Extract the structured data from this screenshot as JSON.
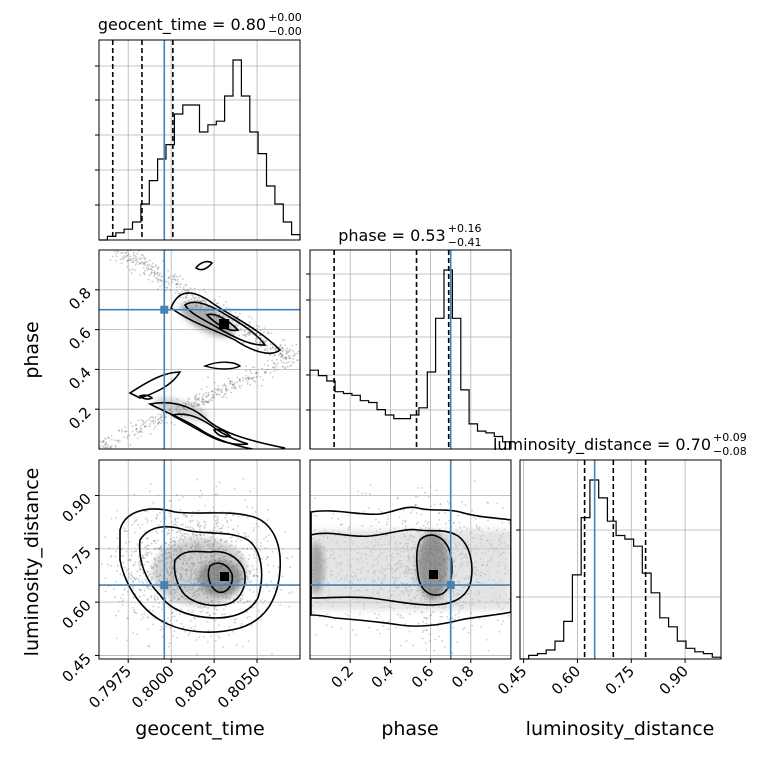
{
  "chart_data": {
    "type": "corner",
    "parameters": [
      "geocent_time",
      "phase",
      "luminosity_distance"
    ],
    "truths": {
      "geocent_time": 0.7996,
      "phase": 0.7,
      "luminosity_distance": 0.648
    },
    "colors": {
      "truth": "#4682b4",
      "hist": "#000000",
      "grid": "#b0b0b0"
    },
    "titles": [
      {
        "param": "geocent_time",
        "text": "geocent_time = 0.80",
        "plus": "+0.00",
        "minus": "−0.00"
      },
      {
        "param": "phase",
        "text": "phase = 0.53",
        "plus": "+0.16",
        "minus": "−0.41"
      },
      {
        "param": "luminosity_distance",
        "text": "luminosity_distance = 0.70",
        "plus": "+0.09",
        "minus": "−0.08"
      }
    ],
    "xlabels": [
      "geocent_time",
      "phase",
      "luminosity_distance"
    ],
    "ylabels": [
      "phase",
      "luminosity_distance"
    ],
    "ranges": {
      "geocent_time": [
        0.7958,
        0.8075
      ],
      "phase": [
        0.0,
        1.0
      ],
      "luminosity_distance": [
        0.44,
        1.0
      ]
    },
    "ticks": {
      "geocent_time": [
        "0.7975",
        "0.8000",
        "0.8025",
        "0.8050"
      ],
      "phase_x": [
        "0.2",
        "0.4",
        "0.6",
        "0.8"
      ],
      "phase_y": [
        "0.2",
        "0.4",
        "0.6",
        "0.8"
      ],
      "luminosity_distance": [
        "0.45",
        "0.60",
        "0.75",
        "0.90"
      ]
    },
    "quantiles": {
      "geocent_time": [
        0.7966,
        0.7983,
        0.8001
      ],
      "phase": [
        0.12,
        0.53,
        0.69
      ],
      "luminosity_distance": [
        0.62,
        0.7,
        0.79
      ]
    },
    "histograms": {
      "geocent_time": [
        0.0,
        0.02,
        0.04,
        0.06,
        0.1,
        0.2,
        0.33,
        0.45,
        0.53,
        0.7,
        0.75,
        0.75,
        0.6,
        0.64,
        0.66,
        0.8,
        1.0,
        0.8,
        0.6,
        0.48,
        0.3,
        0.2,
        0.1,
        0.03
      ],
      "phase": [
        0.44,
        0.41,
        0.38,
        0.32,
        0.31,
        0.3,
        0.27,
        0.26,
        0.22,
        0.19,
        0.17,
        0.17,
        0.19,
        0.23,
        0.43,
        0.73,
        1.0,
        0.73,
        0.33,
        0.14,
        0.1,
        0.09,
        0.07,
        0.04
      ],
      "luminosity_distance": [
        0.0,
        0.02,
        0.03,
        0.05,
        0.1,
        0.21,
        0.47,
        0.79,
        1.0,
        0.9,
        0.77,
        0.69,
        0.67,
        0.63,
        0.48,
        0.37,
        0.23,
        0.18,
        0.1,
        0.06,
        0.04,
        0.03,
        0.01
      ]
    }
  }
}
